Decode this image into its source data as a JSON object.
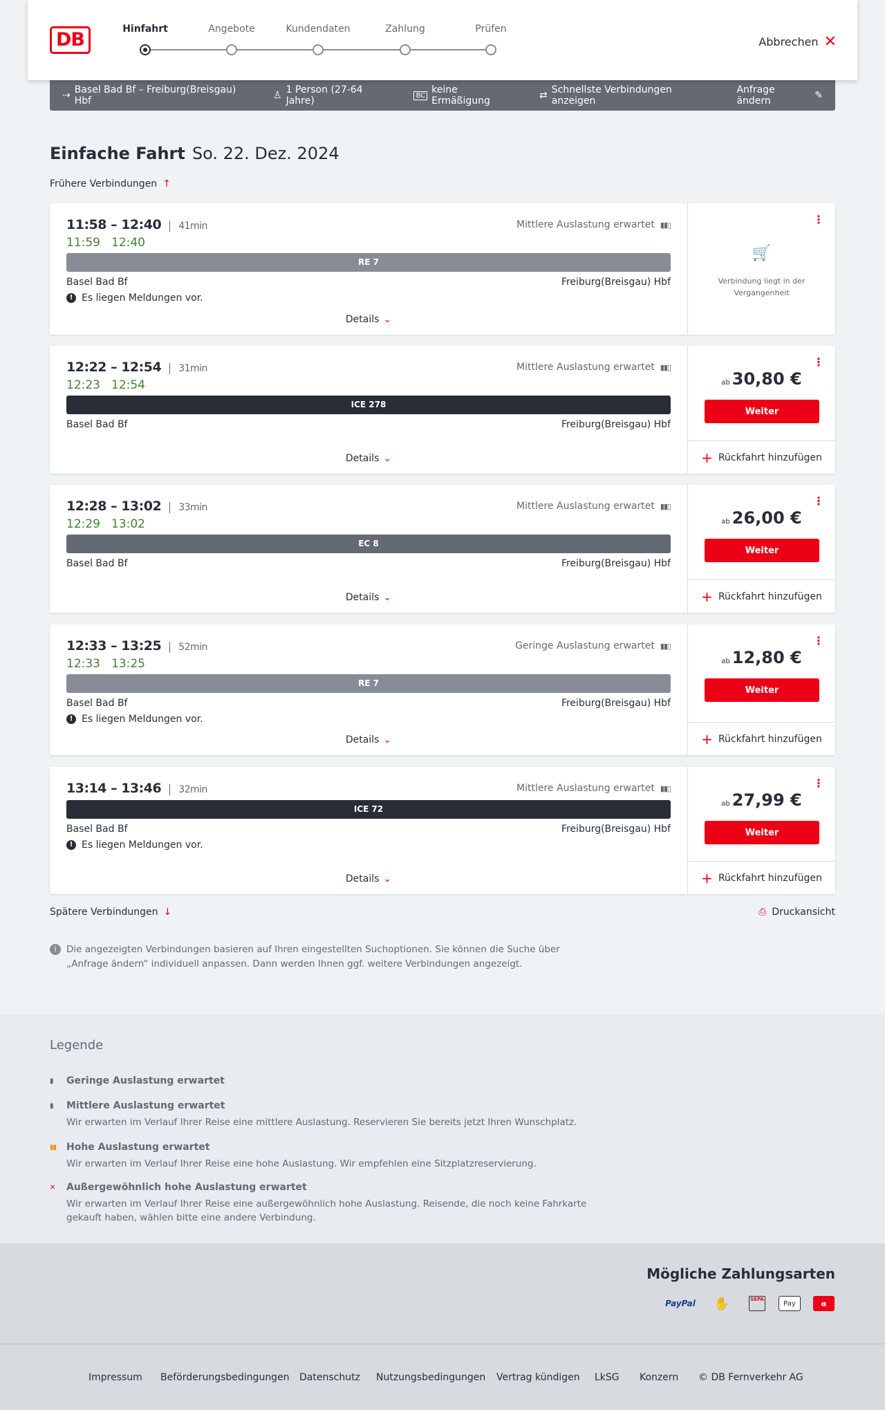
{
  "header": {
    "logo": "DB",
    "steps": [
      "Hinfahrt",
      "Angebote",
      "Kundendaten",
      "Zahlung",
      "Prüfen"
    ],
    "active_step": 0,
    "cancel": "Abbrechen"
  },
  "summary": {
    "route": "Basel Bad Bf – Freiburg(Breisgau) Hbf",
    "travellers": "1 Person (27-64 Jahre)",
    "discount": "keine Ermäßigung",
    "option": "Schnellste Verbindungen anzeigen",
    "edit": "Anfrage ändern"
  },
  "page": {
    "title": "Einfache Fahrt",
    "date": "So. 22. Dez. 2024",
    "earlier": "Frühere Verbindungen",
    "later": "Spätere Verbindungen",
    "print": "Druckansicht",
    "info": "Die angezeigten Verbindungen basieren auf Ihren eingestellten Suchoptionen. Sie können die Suche über „Anfrage ändern“ individuell anpassen. Dann werden Ihnen ggf. weitere Verbindungen angezeigt."
  },
  "common": {
    "details": "Details",
    "weiter": "Weiter",
    "return": "Rückfahrt hinzufügen",
    "ab": "ab",
    "past": "Verbindung liegt in der Vergangenheit"
  },
  "connections": [
    {
      "times": "11:58 – 12:40",
      "duration": "41min",
      "rt_dep": "11:59",
      "rt_arr": "12:40",
      "load": "Mittlere Auslastung erwartet",
      "train": "RE 7",
      "train_color": "#878c96",
      "from": "Basel Bad Bf",
      "to": "Freiburg(Breisgau) Hbf",
      "message": "Es liegen Meldungen vor.",
      "price": null
    },
    {
      "times": "12:22 – 12:54",
      "duration": "31min",
      "rt_dep": "12:23",
      "rt_arr": "12:54",
      "load": "Mittlere Auslastung erwartet",
      "train": "ICE 278",
      "train_color": "#282d37",
      "from": "Basel Bad Bf",
      "to": "Freiburg(Breisgau) Hbf",
      "message": null,
      "price": "30,80 €"
    },
    {
      "times": "12:28 – 13:02",
      "duration": "33min",
      "rt_dep": "12:29",
      "rt_arr": "13:02",
      "load": "Mittlere Auslastung erwartet",
      "train": "EC 8",
      "train_color": "#646973",
      "from": "Basel Bad Bf",
      "to": "Freiburg(Breisgau) Hbf",
      "message": null,
      "price": "26,00 €"
    },
    {
      "times": "12:33 – 13:25",
      "duration": "52min",
      "rt_dep": "12:33",
      "rt_arr": "13:25",
      "load": "Geringe Auslastung erwartet",
      "train": "RE 7",
      "train_color": "#878c96",
      "from": "Basel Bad Bf",
      "to": "Freiburg(Breisgau) Hbf",
      "message": "Es liegen Meldungen vor.",
      "price": "12,80 €"
    },
    {
      "times": "13:14 – 13:46",
      "duration": "32min",
      "rt_dep": null,
      "rt_arr": null,
      "load": "Mittlere Auslastung erwartet",
      "train": "ICE 72",
      "train_color": "#282d37",
      "from": "Basel Bad Bf",
      "to": "Freiburg(Breisgau) Hbf",
      "message": "Es liegen Meldungen vor.",
      "price": "27,99 €"
    }
  ],
  "legend": {
    "title": "Legende",
    "items": [
      {
        "label": "Geringe Auslastung erwartet",
        "text": null,
        "color": "#646973"
      },
      {
        "label": "Mittlere Auslastung erwartet",
        "text": "Wir erwarten im Verlauf Ihrer Reise eine mittlere Auslastung. Reservieren Sie bereits jetzt Ihren Wunschplatz.",
        "color": "#646973"
      },
      {
        "label": "Hohe Auslastung erwartet",
        "text": "Wir erwarten im Verlauf Ihrer Reise eine hohe Auslastung. Wir empfehlen eine Sitzplatzreservierung.",
        "color": "#f39200"
      },
      {
        "label": "Außergewöhnlich hohe Auslastung erwartet",
        "text": "Wir erwarten im Verlauf Ihrer Reise eine außergewöhnlich hohe Auslastung. Reisende, die noch keine Fahrkarte gekauft haben, wählen bitte eine andere Verbindung.",
        "color": "#ec0016"
      }
    ]
  },
  "payment": {
    "title": "Mögliche Zahlungsarten",
    "methods": [
      "PayPal",
      "Kreditkarte",
      "SEPA",
      "Pay",
      "DB"
    ]
  },
  "footer": {
    "links": [
      "Impressum",
      "Beförderungsbedingungen",
      "Datenschutz",
      "Nutzungsbedingungen",
      "Vertrag kündigen",
      "LkSG",
      "Konzern",
      "© DB Fernverkehr AG"
    ]
  }
}
